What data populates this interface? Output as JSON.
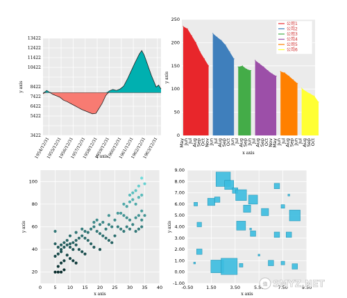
{
  "watermark": {
    "text": "SMYZ.NET",
    "badge": "值"
  },
  "chart_data": [
    {
      "type": "area",
      "xlabel": "x axis",
      "ylabel": "y axis",
      "baseline": 7822,
      "ylim": [
        3422,
        13422
      ],
      "yticks": [
        3422,
        4422,
        5422,
        6422,
        7422,
        8422,
        9422,
        10422,
        11422,
        12422,
        13422
      ],
      "ytick_labels": [
        "3422",
        "",
        "5422",
        "6422",
        "7422",
        "8422",
        "",
        "10422",
        "11422",
        "12422",
        "13422"
      ],
      "xticks": [
        "1954/12/31",
        "1955/12/31",
        "1956/12/31",
        "1957/12/31",
        "1958/12/31",
        "1959/12/31",
        "1960/12/31",
        "1961/12/31",
        "1962/12/31",
        "1963/12/31"
      ],
      "xrange": [
        1954.5,
        1964.3
      ],
      "above_color": "#00b0b0",
      "below_color": "#f87b72",
      "x": [
        1954.5,
        1954.8,
        1955.0,
        1955.3,
        1955.6,
        1955.9,
        1956.2,
        1956.5,
        1956.8,
        1957.1,
        1957.4,
        1957.7,
        1958.0,
        1958.3,
        1958.6,
        1958.9,
        1959.1,
        1959.4,
        1959.7,
        1960.0,
        1960.3,
        1960.6,
        1960.9,
        1961.2,
        1961.5,
        1961.8,
        1962.1,
        1962.3,
        1962.5,
        1962.7,
        1962.9,
        1963.1,
        1963.3,
        1963.5,
        1963.7,
        1963.9,
        1964.1,
        1964.3
      ],
      "values": [
        7700,
        8050,
        7900,
        7650,
        7500,
        7350,
        7050,
        6900,
        6700,
        6500,
        6300,
        6100,
        5950,
        5800,
        5650,
        5700,
        6100,
        6700,
        7500,
        8000,
        8150,
        8050,
        8200,
        8500,
        9200,
        10000,
        10800,
        11300,
        11800,
        12150,
        11700,
        11000,
        10300,
        9600,
        9000,
        8400,
        8600,
        8200
      ]
    },
    {
      "type": "area",
      "xlabel": "x axis",
      "ylabel": "y axis",
      "ylim": [
        0,
        250
      ],
      "yticks": [
        0,
        50,
        100,
        150,
        200,
        250
      ],
      "legend": [
        "公司1",
        "公司2",
        "公司3",
        "公司4",
        "公司5",
        "公司6"
      ],
      "legend_position": "top-right",
      "categories": [
        "May",
        "Jun",
        "Jul",
        "Aug",
        "Sep",
        "Oct",
        "Nov"
      ],
      "series": [
        {
          "name": "公司1",
          "color": "#e8262b",
          "x": [
            "May",
            "Jun",
            "Jul",
            "Aug",
            "Sep",
            "Oct",
            "Nov"
          ],
          "values": [
            235,
            230,
            215,
            200,
            180,
            165,
            150
          ]
        },
        {
          "name": "公司2",
          "color": "#3f7fbc",
          "x": [
            "May",
            "Jun",
            "Jul",
            "Aug",
            "Sep",
            "Oct"
          ],
          "values": [
            220,
            212,
            205,
            195,
            180,
            165
          ]
        },
        {
          "name": "公司3",
          "color": "#44ac48",
          "x": [
            "Jun",
            "Jul",
            "Aug",
            "Sep"
          ],
          "values": [
            148,
            150,
            143,
            140
          ]
        },
        {
          "name": "公司4",
          "color": "#9c4fa8",
          "x": [
            "Jun",
            "Jul",
            "Aug",
            "Sep",
            "Oct",
            "Nov"
          ],
          "values": [
            162,
            155,
            148,
            140,
            133,
            128
          ]
        },
        {
          "name": "公司5",
          "color": "#ff8000",
          "x": [
            "May",
            "Jun",
            "Jul",
            "Aug",
            "Sep"
          ],
          "values": [
            138,
            135,
            128,
            120,
            112
          ]
        },
        {
          "name": "公司6",
          "color": "#ffff33",
          "x": [
            "Jun",
            "Jul",
            "Aug",
            "Sep",
            "Oct"
          ],
          "values": [
            102,
            95,
            90,
            85,
            72
          ]
        }
      ],
      "tick_labels": [
        "May",
        "Jun",
        "Jul",
        "Aug",
        "Sep",
        "Oct",
        "Nov",
        "Jun",
        "Jul",
        "Aug",
        "Sep",
        "Oct",
        "Jun",
        "Jul",
        "Aug",
        "Sep",
        "Jun",
        "Jul",
        "Aug",
        "Sep",
        "Oct",
        "Nov",
        "May",
        "Jun",
        "Jul",
        "Aug",
        "Sep",
        "Jun",
        "Jul",
        "Aug",
        "Sep",
        "Oct"
      ]
    },
    {
      "type": "scatter",
      "xlabel": "x axis",
      "ylabel": "y axis",
      "xlim": [
        0,
        40
      ],
      "ylim": [
        10,
        110
      ],
      "xticks": [
        0,
        5,
        10,
        15,
        20,
        25,
        30,
        35,
        40
      ],
      "yticks": [
        20,
        40,
        60,
        80,
        100
      ],
      "color_low": "#062a2a",
      "color_high": "#6fe0e0",
      "points": [
        [
          5,
          20
        ],
        [
          6,
          20
        ],
        [
          7,
          20
        ],
        [
          8,
          22
        ],
        [
          6,
          25
        ],
        [
          7,
          28
        ],
        [
          8,
          30
        ],
        [
          5,
          34
        ],
        [
          6,
          36
        ],
        [
          7,
          38
        ],
        [
          9,
          35
        ],
        [
          10,
          32
        ],
        [
          11,
          30
        ],
        [
          12,
          28
        ],
        [
          7,
          40
        ],
        [
          8,
          42
        ],
        [
          9,
          44
        ],
        [
          10,
          45
        ],
        [
          11,
          46
        ],
        [
          12,
          44
        ],
        [
          13,
          40
        ],
        [
          14,
          38
        ],
        [
          15,
          36
        ],
        [
          5,
          45
        ],
        [
          6,
          42
        ],
        [
          7,
          44
        ],
        [
          8,
          46
        ],
        [
          9,
          48
        ],
        [
          10,
          42
        ],
        [
          11,
          40
        ],
        [
          12,
          48
        ],
        [
          13,
          50
        ],
        [
          14,
          52
        ],
        [
          15,
          50
        ],
        [
          16,
          48
        ],
        [
          17,
          45
        ],
        [
          18,
          42
        ],
        [
          20,
          40
        ],
        [
          5,
          56
        ],
        [
          10,
          52
        ],
        [
          12,
          55
        ],
        [
          14,
          58
        ],
        [
          16,
          55
        ],
        [
          17,
          58
        ],
        [
          18,
          60
        ],
        [
          19,
          56
        ],
        [
          20,
          54
        ],
        [
          21,
          52
        ],
        [
          22,
          50
        ],
        [
          23,
          48
        ],
        [
          24,
          46
        ],
        [
          25,
          52
        ],
        [
          15,
          56
        ],
        [
          18,
          64
        ],
        [
          20,
          62
        ],
        [
          22,
          58
        ],
        [
          23,
          62
        ],
        [
          24,
          60
        ],
        [
          25,
          66
        ],
        [
          26,
          60
        ],
        [
          27,
          58
        ],
        [
          28,
          56
        ],
        [
          29,
          60
        ],
        [
          30,
          58
        ],
        [
          31,
          62
        ],
        [
          32,
          56
        ],
        [
          33,
          58
        ],
        [
          34,
          60
        ],
        [
          26,
          72
        ],
        [
          28,
          70
        ],
        [
          29,
          68
        ],
        [
          30,
          66
        ],
        [
          32,
          68
        ],
        [
          33,
          70
        ],
        [
          34,
          74
        ],
        [
          28,
          80
        ],
        [
          29,
          78
        ],
        [
          30,
          82
        ],
        [
          31,
          84
        ],
        [
          32,
          80
        ],
        [
          33,
          86
        ],
        [
          34,
          88
        ],
        [
          31,
          90
        ],
        [
          32,
          92
        ],
        [
          30,
          88
        ],
        [
          33,
          96
        ],
        [
          34,
          103
        ],
        [
          35,
          98
        ],
        [
          27,
          72
        ],
        [
          23,
          70
        ],
        [
          19,
          66
        ],
        [
          21,
          64
        ],
        [
          35,
          70
        ],
        [
          34,
          66
        ]
      ]
    },
    {
      "type": "scatter",
      "xlabel": "x axis",
      "ylabel": "y axis",
      "xlim": [
        -0.5,
        9.5
      ],
      "ylim": [
        -1,
        9
      ],
      "xticks": [
        -0.5,
        1.5,
        3.5,
        5.5,
        7.5,
        9.5
      ],
      "xtick_labels": [
        "-0.50",
        "1.50",
        "3.50",
        "5.50",
        "7.50",
        "9.50"
      ],
      "yticks": [
        -1,
        0,
        1,
        2,
        3,
        4,
        5,
        6,
        7,
        8,
        9
      ],
      "ytick_labels": [
        "-1.00",
        "0.00",
        "1.00",
        "2.00",
        "3.00",
        "4.00",
        "5.00",
        "6.00",
        "7.00",
        "8.00",
        "9.00"
      ],
      "color": "#3bbde0",
      "points": [
        [
          0.2,
          6.0,
          2
        ],
        [
          0.5,
          4.2,
          2.5
        ],
        [
          0.5,
          1.8,
          3
        ],
        [
          1.5,
          6.2,
          4
        ],
        [
          2.0,
          6.4,
          3
        ],
        [
          2.5,
          8.2,
          8
        ],
        [
          3.0,
          7.7,
          5
        ],
        [
          3.5,
          7.2,
          3
        ],
        [
          4.0,
          6.8,
          6
        ],
        [
          4.5,
          5.6,
          4
        ],
        [
          4.0,
          4.1,
          5
        ],
        [
          5.0,
          6.4,
          5
        ],
        [
          5.0,
          3.4,
          3
        ],
        [
          6.0,
          5.3,
          4
        ],
        [
          4.8,
          3.8,
          1
        ],
        [
          7.0,
          7.6,
          3
        ],
        [
          7.0,
          3.3,
          3
        ],
        [
          7.5,
          5.8,
          2
        ],
        [
          8.0,
          6.8,
          1
        ],
        [
          8.5,
          5.0,
          6
        ],
        [
          8.0,
          3.3,
          3
        ],
        [
          6.5,
          0.8,
          3
        ],
        [
          7.5,
          0.8,
          2
        ],
        [
          2.0,
          0.5,
          7
        ],
        [
          3.0,
          0.5,
          9
        ],
        [
          4.0,
          0.6,
          2
        ],
        [
          8.5,
          0.5,
          3
        ],
        [
          0.1,
          0.8,
          1
        ],
        [
          5.5,
          1.5,
          1
        ]
      ]
    }
  ]
}
